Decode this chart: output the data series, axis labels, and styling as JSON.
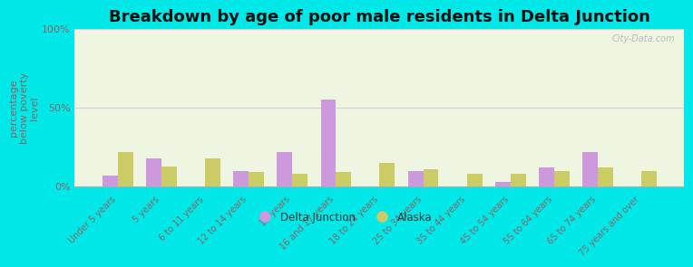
{
  "title": "Breakdown by age of poor male residents in Delta Junction",
  "ylabel": "percentage\nbelow poverty\nlevel",
  "categories": [
    "Under 5 years",
    "5 years",
    "6 to 11 years",
    "12 to 14 years",
    "15 years",
    "16 and 17 years",
    "18 to 24 years",
    "25 to 34 years",
    "35 to 44 years",
    "45 to 54 years",
    "55 to 64 years",
    "65 to 74 years",
    "75 years and over"
  ],
  "delta_junction": [
    7,
    18,
    0,
    10,
    22,
    55,
    0,
    10,
    0,
    3,
    12,
    22,
    0
  ],
  "alaska": [
    22,
    13,
    18,
    9,
    8,
    9,
    15,
    11,
    8,
    8,
    10,
    12,
    10
  ],
  "delta_color": "#cc99dd",
  "alaska_color": "#cccc66",
  "plot_bg_color": "#eef5e0",
  "outer_bg": "#00e8e8",
  "ylim": [
    0,
    100
  ],
  "yticks": [
    0,
    50,
    100
  ],
  "ytick_labels": [
    "0%",
    "50%",
    "100%"
  ],
  "bar_width": 0.35,
  "title_fontsize": 13,
  "axis_label_color": "#886666",
  "tick_label_color": "#886666",
  "legend_delta": "Delta Junction",
  "legend_alaska": "Alaska",
  "watermark": "City-Data.com"
}
